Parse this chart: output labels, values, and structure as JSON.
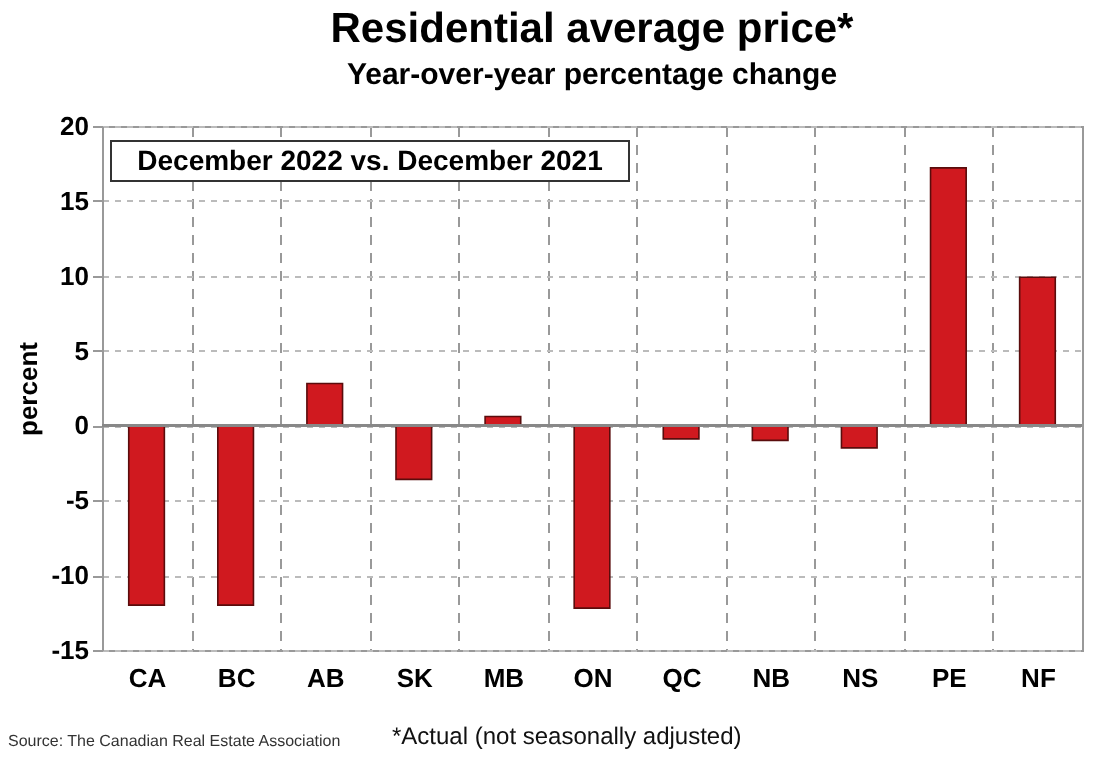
{
  "chart_data": {
    "type": "bar",
    "title": "Residential average price*",
    "subtitle": "Year-over-year percentage change",
    "ylabel": "percent",
    "categories": [
      "CA",
      "BC",
      "AB",
      "SK",
      "MB",
      "ON",
      "QC",
      "NB",
      "NS",
      "PE",
      "NF"
    ],
    "values": [
      -12.0,
      -12.0,
      2.8,
      -3.6,
      0.6,
      -12.2,
      -0.9,
      -1.0,
      -1.5,
      17.2,
      9.9
    ],
    "color": "#d0191f",
    "ylim": [
      -15,
      20
    ],
    "yticks": [
      -15,
      -10,
      -5,
      0,
      5,
      10,
      15,
      20
    ],
    "grid": true,
    "annotations": [
      "December 2022 vs. December 2021",
      "Source: The Canadian Real Estate Association",
      "*Actual (not seasonally adjusted)"
    ]
  }
}
